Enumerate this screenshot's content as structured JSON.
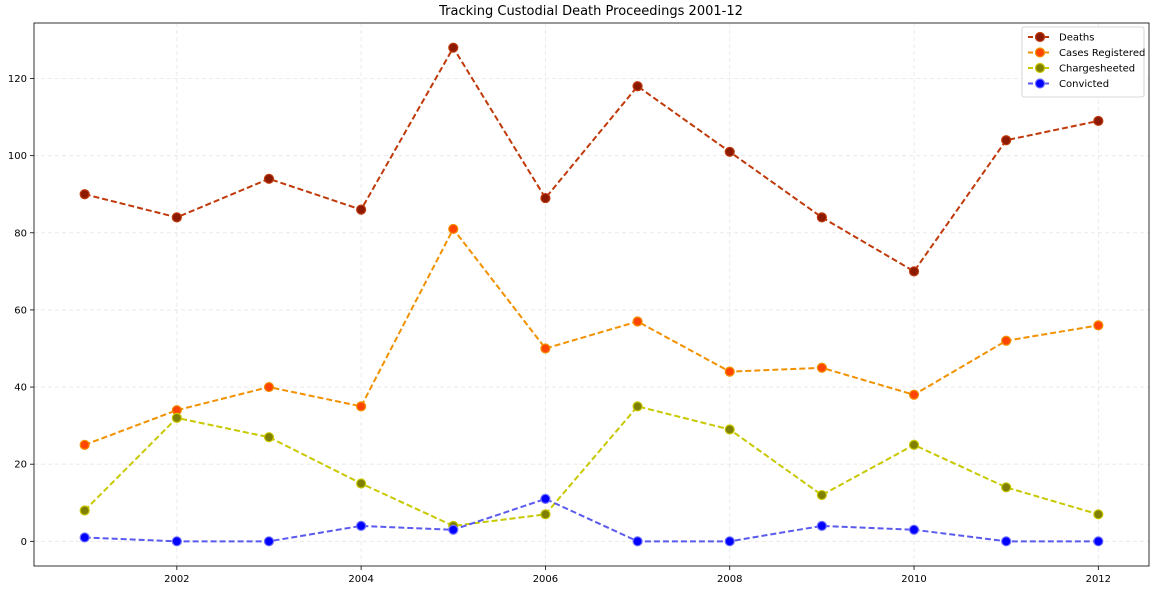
{
  "chart_data": {
    "type": "line",
    "title": "Tracking Custodial Death Proceedings 2001-12",
    "xlabel": "",
    "ylabel": "",
    "x": [
      2001,
      2002,
      2003,
      2004,
      2005,
      2006,
      2007,
      2008,
      2009,
      2010,
      2011,
      2012
    ],
    "xticks": [
      2002,
      2004,
      2006,
      2008,
      2010,
      2012
    ],
    "yticks": [
      0,
      20,
      40,
      60,
      80,
      100,
      120
    ],
    "xlim": [
      2000.45,
      2012.55
    ],
    "ylim": [
      -6.4,
      134.4
    ],
    "grid": true,
    "legend_position": "top-right",
    "series": [
      {
        "name": "Deaths",
        "values": [
          90,
          84,
          94,
          86,
          128,
          89,
          118,
          101,
          84,
          70,
          104,
          109
        ],
        "line_color": "#c0390b",
        "marker_color": "#8b1a00",
        "marker_edge": "#c0390b"
      },
      {
        "name": "Cases Registered",
        "values": [
          25,
          34,
          40,
          35,
          81,
          50,
          57,
          44,
          45,
          38,
          52,
          56
        ],
        "line_color": "#f29100",
        "marker_color": "#ff4500",
        "marker_edge": "#f29100"
      },
      {
        "name": "Chargesheeted",
        "values": [
          8,
          32,
          27,
          15,
          4,
          7,
          35,
          29,
          12,
          25,
          14,
          7
        ],
        "line_color": "#c8c800",
        "marker_color": "#808000",
        "marker_edge": "#c8c800"
      },
      {
        "name": "Convicted",
        "values": [
          1,
          0,
          0,
          4,
          3,
          11,
          0,
          0,
          4,
          3,
          0,
          0
        ],
        "line_color": "#5a5aee",
        "marker_color": "#0000ff",
        "marker_edge": "#7070ff"
      }
    ]
  }
}
